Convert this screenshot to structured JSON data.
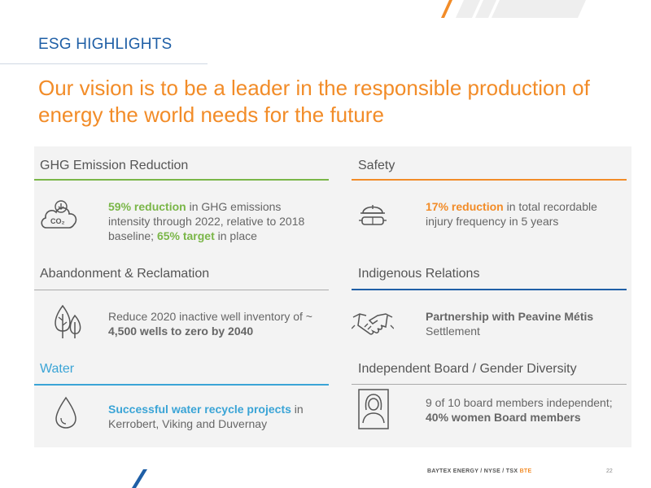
{
  "header": {
    "section": "ESG HIGHLIGHTS",
    "headline": "Our vision is to be a leader in the responsible production of energy the world needs for the future"
  },
  "cards": {
    "ghg": {
      "title": "GHG Emission Reduction",
      "icon": "co2-cloud-icon",
      "icon_label": "CO₂",
      "highlight": "59% reduction",
      "text1": " in GHG emissions intensity through 2022, relative to 2018 baseline; ",
      "highlight2": "65% target",
      "text2": " in place"
    },
    "safety": {
      "title": "Safety",
      "icon": "hard-hat-goggles-icon",
      "highlight": "17% reduction",
      "text": " in total recordable injury frequency in 5 years"
    },
    "abandonment": {
      "title": "Abandonment & Reclamation",
      "icon": "trees-icon",
      "text": "Reduce 2020 inactive well inventory of ~ ",
      "highlight": "4,500 wells to zero by 2040"
    },
    "indigenous": {
      "title": "Indigenous Relations",
      "icon": "handshake-icon",
      "highlight": "Partnership with Peavine Métis",
      "text": " Settlement"
    },
    "water": {
      "title": "Water",
      "icon": "water-drop-icon",
      "highlight": "Successful water recycle projects",
      "text": " in Kerrobert, Viking and Duvernay"
    },
    "board": {
      "title": "Independent Board / Gender Diversity",
      "icon": "woman-avatar-icon",
      "text": "9 of 10 board members independent; ",
      "highlight": "40% women Board members"
    }
  },
  "footer": {
    "company": "BAYTEX ENERGY",
    "sep1": " / ",
    "nyse": "NYSE",
    "sep2": " / ",
    "tsx": "TSX",
    "ticker": "BTE",
    "page": "22"
  },
  "colors": {
    "blue": "#1f5fa6",
    "orange": "#f28c28",
    "green": "#7ab648",
    "light_blue": "#3aa4d6",
    "gray_text": "#666666",
    "panel": "#f3f3f3"
  }
}
